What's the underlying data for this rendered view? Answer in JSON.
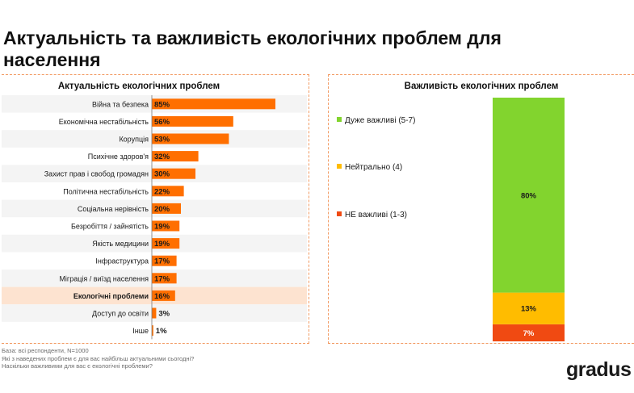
{
  "page_title": "Актуальність та важливість екологічних проблем для населення",
  "colors": {
    "bar_orange": "#ff6f00",
    "highlight_row": "#fde3d0",
    "stripe_row": "#f4f4f4",
    "green": "#82d42e",
    "yellow": "#ffbc00",
    "red": "#f04a12"
  },
  "left_panel": {
    "title": "Актуальність екологічних проблем"
  },
  "right_panel": {
    "title": "Важливість екологічних проблем"
  },
  "chart_data": [
    {
      "type": "bar",
      "orientation": "horizontal",
      "title": "Актуальність екологічних проблем",
      "categories": [
        "Війна та безпека",
        "Економічна нестабільність",
        "Корупція",
        "Психічне здоров'я",
        "Захист прав і свобод громадян",
        "Політична нестабільність",
        "Соціальна нерівність",
        "Безробіття / зайнятість",
        "Якість медицини",
        "Інфраструктура",
        "Міграція / виїзд населення",
        "Екологічні проблеми",
        "Доступ до освіти",
        "Інше"
      ],
      "values": [
        85,
        56,
        53,
        32,
        30,
        22,
        20,
        19,
        19,
        17,
        17,
        16,
        3,
        1
      ],
      "value_labels": [
        "85%",
        "56%",
        "53%",
        "32%",
        "30%",
        "22%",
        "20%",
        "19%",
        "19%",
        "17%",
        "17%",
        "16%",
        "3%",
        "1%"
      ],
      "highlighted_category": "Екологічні проблеми",
      "xlim": [
        0,
        100
      ]
    },
    {
      "type": "bar",
      "stacked": true,
      "title": "Важливість екологічних проблем",
      "series": [
        {
          "name": "НЕ важливі (1-3)",
          "value": 7,
          "label": "7%",
          "color": "#f04a12"
        },
        {
          "name": "Нейтрально (4)",
          "value": 13,
          "label": "13%",
          "color": "#ffbc00"
        },
        {
          "name": "Дуже важливі (5-7)",
          "value": 80,
          "label": "80%",
          "color": "#82d42e"
        }
      ],
      "legend": [
        "Дуже важливі (5-7)",
        "Нейтрально (4)",
        "НЕ важливі (1-3)"
      ],
      "legend_position": "left"
    }
  ],
  "footnotes": [
    "База: всі респонденти, N=1000",
    "Які з наведених проблем є для вас найбільш актуальними сьогодні?",
    "Наскільки важливими для вас є екологічні проблеми?"
  ],
  "logo_text": "gradus"
}
